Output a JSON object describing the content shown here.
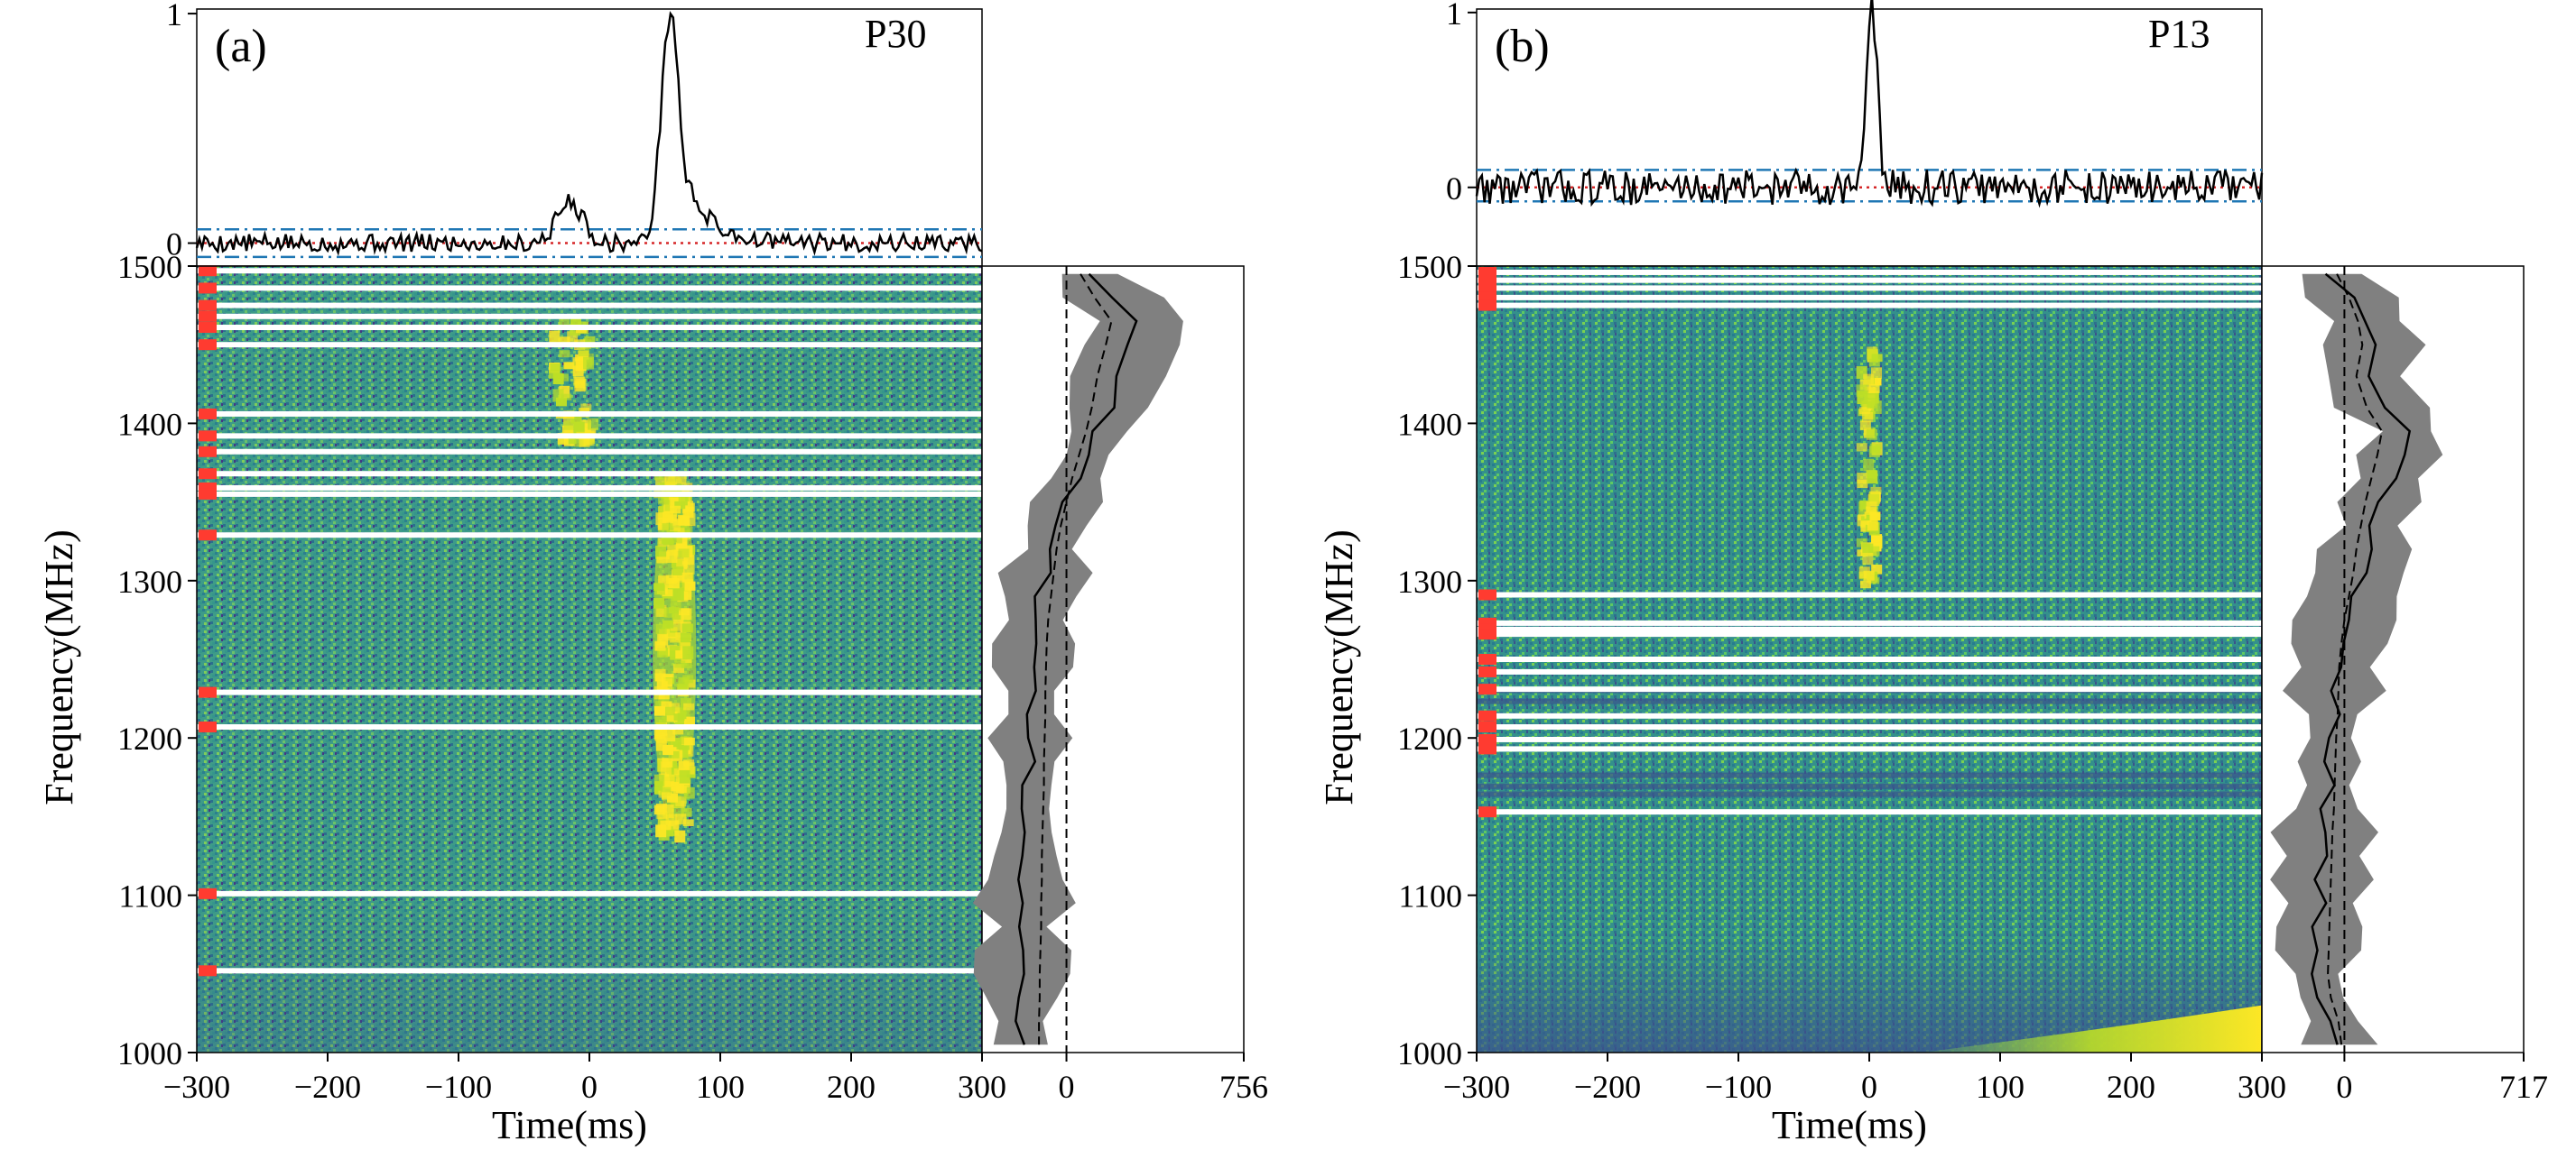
{
  "chart_data": [
    {
      "type": "heatmap",
      "panel_label": "(a)",
      "pulse_name": "P30",
      "xlabel": "Time(ms)",
      "ylabel": "Frequency(MHz)",
      "xlim": [
        -300,
        300
      ],
      "ylim": [
        1000,
        1500
      ],
      "x_ticks": [
        "−300",
        "−200",
        "−100",
        "0",
        "100",
        "200",
        "300"
      ],
      "y_ticks": [
        "1000",
        "1100",
        "1200",
        "1300",
        "1400",
        "1500"
      ],
      "colormap": "viridis",
      "masked_channels_mhz": [
        1497,
        1486,
        1475,
        1468,
        1461,
        1450,
        1406,
        1392,
        1382,
        1368,
        1359,
        1355,
        1329,
        1229,
        1207,
        1101,
        1052
      ],
      "emission": {
        "precursor": {
          "time_ms": -12,
          "freq_range_mhz": [
            1390,
            1470
          ]
        },
        "main_burst": {
          "time_ms": 65,
          "freq_range_mhz": [
            1140,
            1370
          ]
        }
      },
      "profile": {
        "ylim": [
          -0.1,
          1.02
        ],
        "y_ticks": [
          "0",
          "1"
        ],
        "peak": {
          "x": 62,
          "y": 1.0
        },
        "precursor_peak": {
          "x": -15,
          "y": 0.18
        },
        "noise_band": [
          -0.06,
          0.06
        ],
        "baseline": 0.0,
        "band_color": "#1f77b4",
        "baseline_color": "#d62728"
      },
      "spectrum": {
        "xlim": [
          -360,
          756
        ],
        "x_ticks": [
          "0",
          "756"
        ],
        "zero_line": 0,
        "fill_color": "#808080",
        "mean_values": [
          [
            1495,
            100
          ],
          [
            1480,
            200
          ],
          [
            1465,
            320
          ],
          [
            1450,
            280
          ],
          [
            1430,
            220
          ],
          [
            1410,
            180
          ],
          [
            1395,
            140
          ],
          [
            1380,
            90
          ],
          [
            1365,
            40
          ],
          [
            1350,
            0
          ],
          [
            1335,
            -40
          ],
          [
            1320,
            -70
          ],
          [
            1305,
            -90
          ],
          [
            1290,
            -110
          ],
          [
            1275,
            -130
          ],
          [
            1260,
            -140
          ],
          [
            1245,
            -145
          ],
          [
            1230,
            -150
          ],
          [
            1215,
            -150
          ],
          [
            1200,
            -155
          ],
          [
            1185,
            -160
          ],
          [
            1170,
            -160
          ],
          [
            1155,
            -165
          ],
          [
            1140,
            -170
          ],
          [
            1125,
            -175
          ],
          [
            1110,
            -175
          ],
          [
            1095,
            -180
          ],
          [
            1080,
            -180
          ],
          [
            1065,
            -185
          ],
          [
            1050,
            -190
          ],
          [
            1035,
            -190
          ],
          [
            1020,
            -195
          ],
          [
            1005,
            -195
          ]
        ]
      }
    },
    {
      "type": "heatmap",
      "panel_label": "(b)",
      "pulse_name": "P13",
      "xlabel": "Time(ms)",
      "ylabel": "Frequency(MHz)",
      "xlim": [
        -300,
        300
      ],
      "ylim": [
        1000,
        1500
      ],
      "x_ticks": [
        "−300",
        "−200",
        "−100",
        "0",
        "100",
        "200",
        "300"
      ],
      "y_ticks": [
        "1000",
        "1100",
        "1200",
        "1300",
        "1400",
        "1500"
      ],
      "colormap": "viridis",
      "masked_channels_mhz": [
        1496,
        1491,
        1486,
        1480,
        1475,
        1291,
        1273,
        1269,
        1266,
        1250,
        1242,
        1231,
        1214,
        1207,
        1199,
        1193,
        1153
      ],
      "emission": {
        "main_burst": {
          "time_ms": 0,
          "freq_range_mhz": [
            1300,
            1450
          ]
        }
      },
      "profile": {
        "ylim": [
          -0.45,
          1.02
        ],
        "y_ticks": [
          "0",
          "1"
        ],
        "peak": {
          "x": 2,
          "y": 1.0
        },
        "noise_band": [
          -0.08,
          0.1
        ],
        "baseline": 0.0,
        "band_color": "#1f77b4",
        "baseline_color": "#d62728"
      },
      "spectrum": {
        "xlim": [
          -330,
          717
        ],
        "x_ticks": [
          "0",
          "717"
        ],
        "zero_line": 0,
        "fill_color": "#808080",
        "mean_values": [
          [
            1495,
            -50
          ],
          [
            1480,
            30
          ],
          [
            1465,
            90
          ],
          [
            1450,
            120
          ],
          [
            1430,
            80
          ],
          [
            1410,
            150
          ],
          [
            1395,
            250
          ],
          [
            1380,
            220
          ],
          [
            1365,
            180
          ],
          [
            1350,
            140
          ],
          [
            1335,
            110
          ],
          [
            1320,
            80
          ],
          [
            1305,
            60
          ],
          [
            1290,
            30
          ],
          [
            1275,
            0
          ],
          [
            1260,
            -20
          ],
          [
            1245,
            -35
          ],
          [
            1230,
            -40
          ],
          [
            1215,
            -45
          ],
          [
            1200,
            -55
          ],
          [
            1185,
            -60
          ],
          [
            1170,
            -65
          ],
          [
            1155,
            -70
          ],
          [
            1140,
            -80
          ],
          [
            1125,
            -85
          ],
          [
            1110,
            -90
          ],
          [
            1095,
            -95
          ],
          [
            1080,
            -100
          ],
          [
            1065,
            -105
          ],
          [
            1050,
            -110
          ],
          [
            1035,
            -90
          ],
          [
            1020,
            -40
          ],
          [
            1005,
            -20
          ]
        ]
      }
    }
  ]
}
